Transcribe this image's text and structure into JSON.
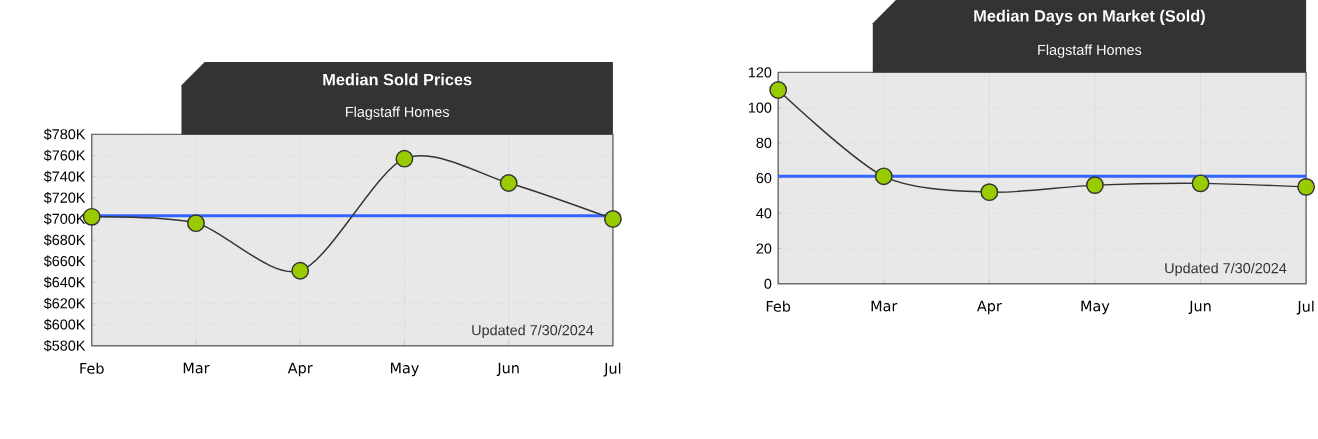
{
  "chart_data": [
    {
      "type": "line",
      "title": "Median Sold Prices",
      "subtitle": "Flagstaff Homes",
      "categories": [
        "Feb",
        "Mar",
        "Apr",
        "May",
        "Jun",
        "Jul"
      ],
      "series": [
        {
          "color": "#99cc00",
          "values": [
            702000,
            696000,
            651000,
            757000,
            734000,
            700000
          ]
        }
      ],
      "ylim": [
        580000,
        780000
      ],
      "yticks": [
        {
          "value": 580000,
          "label": "$580K"
        },
        {
          "value": 600000,
          "label": "$600K"
        },
        {
          "value": 620000,
          "label": "$620K"
        },
        {
          "value": 640000,
          "label": "$640K"
        },
        {
          "value": 660000,
          "label": "$660K"
        },
        {
          "value": 680000,
          "label": "$680K"
        },
        {
          "value": 700000,
          "label": "$700K"
        },
        {
          "value": 720000,
          "label": "$720K"
        },
        {
          "value": 740000,
          "label": "$740K"
        },
        {
          "value": 760000,
          "label": "$760K"
        },
        {
          "value": 780000,
          "label": "$780K"
        }
      ],
      "ref_lines": [
        {
          "axis": "y",
          "value": 703000,
          "color": "#3366ff"
        }
      ],
      "annotations": [
        "Updated 7/30/2024"
      ],
      "grid": true,
      "marker": "circle",
      "line_style": "solid"
    },
    {
      "type": "line",
      "title": "Median Days on Market (Sold)",
      "subtitle": "Flagstaff Homes",
      "categories": [
        "Feb",
        "Mar",
        "Apr",
        "May",
        "Jun",
        "Jul"
      ],
      "series": [
        {
          "color": "#99cc00",
          "values": [
            110,
            61,
            52,
            56,
            57,
            55
          ]
        }
      ],
      "ylim": [
        0,
        120
      ],
      "yticks": [
        0,
        20,
        40,
        60,
        80,
        100,
        120
      ],
      "ref_lines": [
        {
          "axis": "y",
          "value": 61,
          "color": "#3366ff"
        }
      ],
      "annotations": [
        "Updated 7/30/2024"
      ],
      "grid": true,
      "marker": "circle",
      "line_style": "solid"
    }
  ]
}
